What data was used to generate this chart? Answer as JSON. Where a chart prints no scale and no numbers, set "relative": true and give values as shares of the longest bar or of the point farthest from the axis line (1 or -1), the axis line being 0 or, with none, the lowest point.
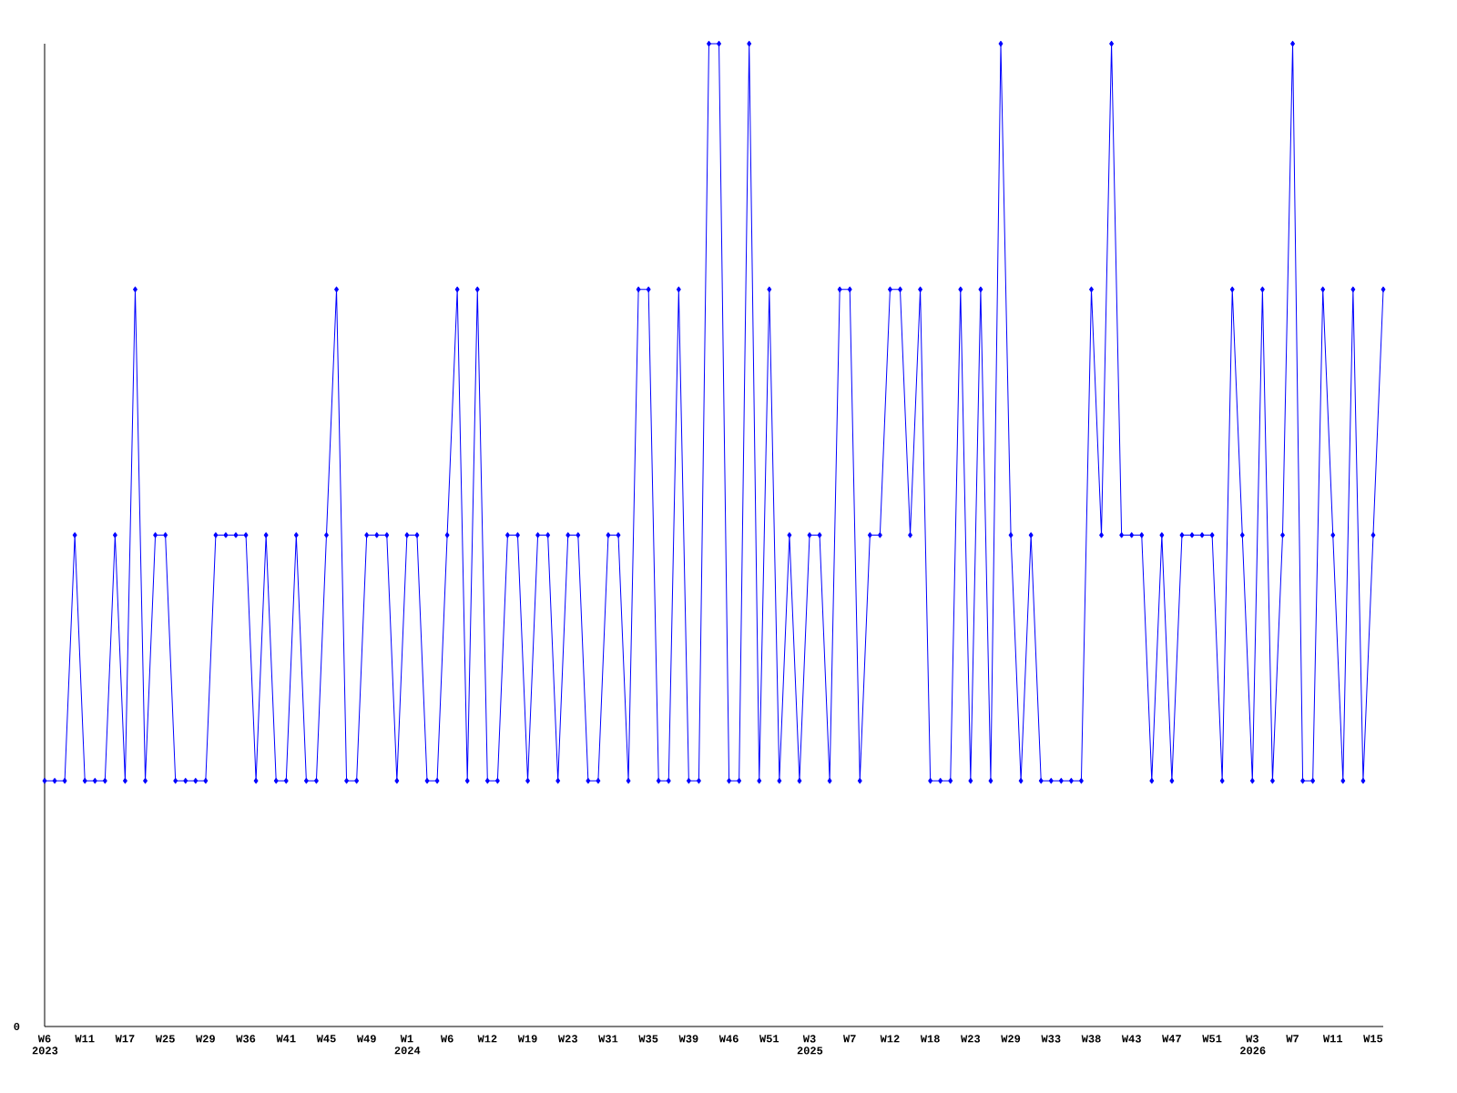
{
  "chart_data": {
    "type": "line",
    "relative": true,
    "marker": "diamond",
    "line_style": "solid",
    "annotations": [
      "0"
    ],
    "categories": [
      "W6 2023",
      null,
      null,
      null,
      "W11",
      null,
      null,
      null,
      "W17",
      null,
      null,
      null,
      "W25",
      null,
      null,
      null,
      "W29",
      null,
      null,
      null,
      "W36",
      null,
      null,
      null,
      "W41",
      null,
      null,
      null,
      "W45",
      null,
      null,
      null,
      "W49",
      null,
      null,
      null,
      "W1 2024",
      null,
      null,
      null,
      "W6",
      null,
      null,
      null,
      "W12",
      null,
      null,
      null,
      "W19",
      null,
      null,
      null,
      "W23",
      null,
      null,
      null,
      "W31",
      null,
      null,
      null,
      "W35",
      null,
      null,
      null,
      "W39",
      null,
      null,
      null,
      "W46",
      null,
      null,
      null,
      "W51",
      null,
      null,
      null,
      "W3 2025",
      null,
      null,
      null,
      "W7",
      null,
      null,
      null,
      "W12",
      null,
      null,
      null,
      "W18",
      null,
      null,
      null,
      "W23",
      null,
      null,
      null,
      "W29",
      null,
      null,
      null,
      "W33",
      null,
      null,
      null,
      "W38",
      null,
      null,
      null,
      "W43",
      null,
      null,
      null,
      "W47",
      null,
      null,
      null,
      "W51",
      null,
      null,
      null,
      "W3 2026",
      null,
      null,
      null,
      "W7",
      null,
      null,
      null,
      "W11",
      null,
      null,
      null,
      "W15",
      null
    ],
    "series": [
      {
        "color": "#0000ff",
        "values": [
          0.25,
          0.25,
          0.25,
          0.5,
          0.25,
          0.25,
          0.25,
          0.5,
          0.25,
          0.75,
          0.25,
          0.5,
          0.5,
          0.25,
          0.25,
          0.25,
          0.25,
          0.5,
          0.5,
          0.5,
          0.5,
          0.25,
          0.5,
          0.25,
          0.25,
          0.5,
          0.25,
          0.25,
          0.5,
          0.75,
          0.25,
          0.25,
          0.5,
          0.5,
          0.5,
          0.25,
          0.5,
          0.5,
          0.25,
          0.25,
          0.5,
          0.75,
          0.25,
          0.75,
          0.25,
          0.25,
          0.5,
          0.5,
          0.25,
          0.5,
          0.5,
          0.25,
          0.5,
          0.5,
          0.25,
          0.25,
          0.5,
          0.5,
          0.25,
          0.75,
          0.75,
          0.25,
          0.25,
          0.75,
          0.25,
          0.25,
          1,
          1,
          0.25,
          0.25,
          1,
          0.25,
          0.75,
          0.25,
          0.5,
          0.25,
          0.5,
          0.5,
          0.25,
          0.75,
          0.75,
          0.25,
          0.5,
          0.5,
          0.75,
          0.75,
          0.5,
          0.75,
          0.25,
          0.25,
          0.25,
          0.75,
          0.25,
          0.75,
          0.25,
          1,
          0.5,
          0.25,
          0.5,
          0.25,
          0.25,
          0.25,
          0.25,
          0.25,
          0.75,
          0.5,
          1,
          0.5,
          0.5,
          0.5,
          0.25,
          0.5,
          0.25,
          0.5,
          0.5,
          0.5,
          0.5,
          0.25,
          0.75,
          0.5,
          0.25,
          0.75,
          0.25,
          0.5,
          1,
          0.25,
          0.25,
          0.75,
          0.5,
          0.25,
          0.75,
          0.25,
          0.5,
          0.75
        ]
      }
    ]
  }
}
